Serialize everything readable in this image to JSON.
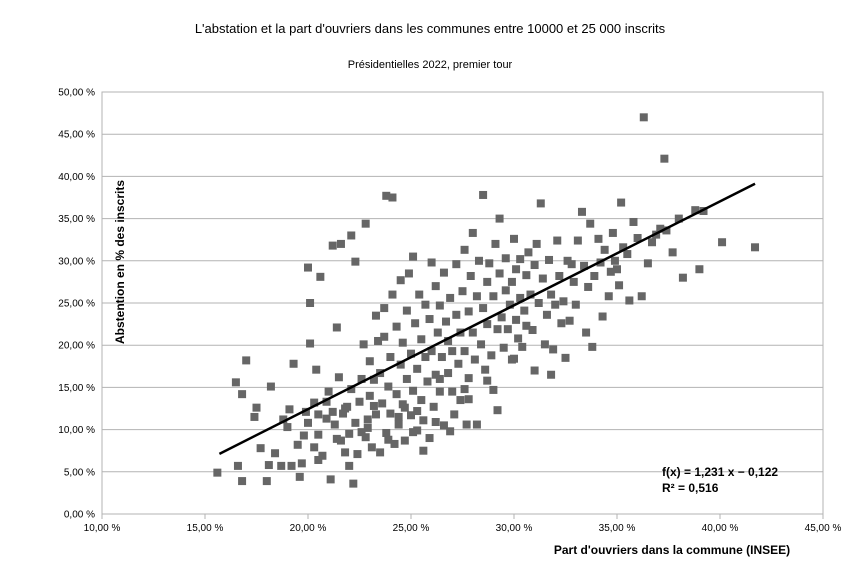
{
  "chart_data": {
    "type": "scatter",
    "title": "L'abstation et la part d'ouvriers dans les communes entre 10000 et 25 000 inscrits",
    "subtitle": "Présidentielles 2022, premier tour",
    "xlabel": "Part d'ouvriers dans la commune (INSEE)",
    "ylabel": "Abstention en % des inscrits",
    "xlim": [
      0.1,
      0.45
    ],
    "ylim": [
      0.0,
      0.5
    ],
    "x_ticks": [
      "10,00 %",
      "15,00 %",
      "20,00 %",
      "25,00 %",
      "30,00 %",
      "35,00 %",
      "40,00 %",
      "45,00 %"
    ],
    "y_ticks": [
      "0,00 %",
      "5,00 %",
      "10,00 %",
      "15,00 %",
      "20,00 %",
      "25,00 %",
      "30,00 %",
      "35,00 %",
      "40,00 %",
      "45,00 %",
      "50,00 %"
    ],
    "grid": true,
    "marker_color": "#666666",
    "trendline": {
      "slope": 1.231,
      "intercept": -0.122,
      "x_range": [
        0.157,
        0.417
      ],
      "equation": "f(x) = 1,231 x − 0,122",
      "r2": "R² = 0,516",
      "color": "#000000"
    },
    "series": [
      {
        "points": [
          [
            0.156,
            0.049
          ],
          [
            0.165,
            0.156
          ],
          [
            0.168,
            0.039
          ],
          [
            0.166,
            0.057
          ],
          [
            0.17,
            0.182
          ],
          [
            0.168,
            0.142
          ],
          [
            0.174,
            0.115
          ],
          [
            0.175,
            0.126
          ],
          [
            0.18,
            0.039
          ],
          [
            0.181,
            0.058
          ],
          [
            0.182,
            0.151
          ],
          [
            0.184,
            0.072
          ],
          [
            0.187,
            0.057
          ],
          [
            0.19,
            0.103
          ],
          [
            0.191,
            0.124
          ],
          [
            0.192,
            0.057
          ],
          [
            0.193,
            0.178
          ],
          [
            0.196,
            0.044
          ],
          [
            0.197,
            0.06
          ],
          [
            0.198,
            0.093
          ],
          [
            0.199,
            0.121
          ],
          [
            0.2,
            0.292
          ],
          [
            0.201,
            0.25
          ],
          [
            0.201,
            0.202
          ],
          [
            0.203,
            0.079
          ],
          [
            0.203,
            0.132
          ],
          [
            0.204,
            0.171
          ],
          [
            0.205,
            0.094
          ],
          [
            0.205,
            0.064
          ],
          [
            0.206,
            0.281
          ],
          [
            0.207,
            0.069
          ],
          [
            0.209,
            0.113
          ],
          [
            0.21,
            0.145
          ],
          [
            0.211,
            0.041
          ],
          [
            0.212,
            0.121
          ],
          [
            0.212,
            0.318
          ],
          [
            0.214,
            0.089
          ],
          [
            0.214,
            0.221
          ],
          [
            0.215,
            0.162
          ],
          [
            0.216,
            0.32
          ],
          [
            0.217,
            0.119
          ],
          [
            0.218,
            0.073
          ],
          [
            0.219,
            0.127
          ],
          [
            0.22,
            0.095
          ],
          [
            0.22,
            0.057
          ],
          [
            0.221,
            0.33
          ],
          [
            0.221,
            0.148
          ],
          [
            0.222,
            0.036
          ],
          [
            0.223,
            0.108
          ],
          [
            0.223,
            0.299
          ],
          [
            0.224,
            0.071
          ],
          [
            0.225,
            0.133
          ],
          [
            0.226,
            0.16
          ],
          [
            0.227,
            0.201
          ],
          [
            0.228,
            0.344
          ],
          [
            0.228,
            0.091
          ],
          [
            0.229,
            0.112
          ],
          [
            0.23,
            0.14
          ],
          [
            0.23,
            0.181
          ],
          [
            0.231,
            0.079
          ],
          [
            0.232,
            0.159
          ],
          [
            0.233,
            0.235
          ],
          [
            0.233,
            0.118
          ],
          [
            0.234,
            0.205
          ],
          [
            0.235,
            0.073
          ],
          [
            0.235,
            0.167
          ],
          [
            0.236,
            0.131
          ],
          [
            0.237,
            0.21
          ],
          [
            0.237,
            0.244
          ],
          [
            0.238,
            0.377
          ],
          [
            0.238,
            0.096
          ],
          [
            0.239,
            0.151
          ],
          [
            0.24,
            0.119
          ],
          [
            0.24,
            0.186
          ],
          [
            0.241,
            0.375
          ],
          [
            0.241,
            0.26
          ],
          [
            0.242,
            0.083
          ],
          [
            0.243,
            0.142
          ],
          [
            0.243,
            0.222
          ],
          [
            0.244,
            0.106
          ],
          [
            0.245,
            0.177
          ],
          [
            0.245,
            0.277
          ],
          [
            0.246,
            0.13
          ],
          [
            0.246,
            0.203
          ],
          [
            0.247,
            0.087
          ],
          [
            0.248,
            0.16
          ],
          [
            0.248,
            0.241
          ],
          [
            0.249,
            0.285
          ],
          [
            0.25,
            0.117
          ],
          [
            0.25,
            0.19
          ],
          [
            0.251,
            0.305
          ],
          [
            0.251,
            0.146
          ],
          [
            0.252,
            0.226
          ],
          [
            0.253,
            0.099
          ],
          [
            0.253,
            0.172
          ],
          [
            0.254,
            0.26
          ],
          [
            0.255,
            0.135
          ],
          [
            0.255,
            0.207
          ],
          [
            0.256,
            0.111
          ],
          [
            0.257,
            0.186
          ],
          [
            0.257,
            0.248
          ],
          [
            0.258,
            0.157
          ],
          [
            0.259,
            0.231
          ],
          [
            0.259,
            0.09
          ],
          [
            0.26,
            0.298
          ],
          [
            0.26,
            0.193
          ],
          [
            0.261,
            0.127
          ],
          [
            0.262,
            0.27
          ],
          [
            0.262,
            0.165
          ],
          [
            0.263,
            0.215
          ],
          [
            0.264,
            0.145
          ],
          [
            0.264,
            0.247
          ],
          [
            0.265,
            0.186
          ],
          [
            0.266,
            0.105
          ],
          [
            0.266,
            0.286
          ],
          [
            0.267,
            0.228
          ],
          [
            0.268,
            0.167
          ],
          [
            0.268,
            0.205
          ],
          [
            0.269,
            0.256
          ],
          [
            0.27,
            0.145
          ],
          [
            0.27,
            0.193
          ],
          [
            0.271,
            0.118
          ],
          [
            0.272,
            0.236
          ],
          [
            0.272,
            0.296
          ],
          [
            0.273,
            0.178
          ],
          [
            0.274,
            0.215
          ],
          [
            0.274,
            0.135
          ],
          [
            0.275,
            0.264
          ],
          [
            0.276,
            0.313
          ],
          [
            0.276,
            0.193
          ],
          [
            0.277,
            0.106
          ],
          [
            0.278,
            0.24
          ],
          [
            0.278,
            0.161
          ],
          [
            0.279,
            0.282
          ],
          [
            0.28,
            0.215
          ],
          [
            0.28,
            0.333
          ],
          [
            0.281,
            0.183
          ],
          [
            0.282,
            0.258
          ],
          [
            0.282,
            0.106
          ],
          [
            0.283,
            0.3
          ],
          [
            0.284,
            0.201
          ],
          [
            0.285,
            0.244
          ],
          [
            0.285,
            0.378
          ],
          [
            0.286,
            0.171
          ],
          [
            0.287,
            0.275
          ],
          [
            0.287,
            0.225
          ],
          [
            0.288,
            0.297
          ],
          [
            0.289,
            0.188
          ],
          [
            0.29,
            0.258
          ],
          [
            0.29,
            0.147
          ],
          [
            0.291,
            0.32
          ],
          [
            0.292,
            0.219
          ],
          [
            0.292,
            0.123
          ],
          [
            0.293,
            0.285
          ],
          [
            0.293,
            0.35
          ],
          [
            0.294,
            0.233
          ],
          [
            0.295,
            0.197
          ],
          [
            0.296,
            0.265
          ],
          [
            0.296,
            0.303
          ],
          [
            0.297,
            0.219
          ],
          [
            0.298,
            0.248
          ],
          [
            0.299,
            0.275
          ],
          [
            0.299,
            0.183
          ],
          [
            0.3,
            0.326
          ],
          [
            0.301,
            0.23
          ],
          [
            0.301,
            0.29
          ],
          [
            0.302,
            0.208
          ],
          [
            0.303,
            0.256
          ],
          [
            0.303,
            0.302
          ],
          [
            0.304,
            0.198
          ],
          [
            0.305,
            0.241
          ],
          [
            0.306,
            0.283
          ],
          [
            0.306,
            0.223
          ],
          [
            0.307,
            0.31
          ],
          [
            0.308,
            0.26
          ],
          [
            0.309,
            0.218
          ],
          [
            0.31,
            0.295
          ],
          [
            0.31,
            0.17
          ],
          [
            0.311,
            0.32
          ],
          [
            0.312,
            0.25
          ],
          [
            0.313,
            0.368
          ],
          [
            0.314,
            0.279
          ],
          [
            0.315,
            0.201
          ],
          [
            0.316,
            0.236
          ],
          [
            0.317,
            0.301
          ],
          [
            0.318,
            0.26
          ],
          [
            0.319,
            0.195
          ],
          [
            0.32,
            0.248
          ],
          [
            0.321,
            0.324
          ],
          [
            0.322,
            0.282
          ],
          [
            0.323,
            0.226
          ],
          [
            0.324,
            0.252
          ],
          [
            0.326,
            0.3
          ],
          [
            0.327,
            0.229
          ],
          [
            0.328,
            0.296
          ],
          [
            0.329,
            0.275
          ],
          [
            0.33,
            0.248
          ],
          [
            0.331,
            0.324
          ],
          [
            0.333,
            0.358
          ],
          [
            0.334,
            0.294
          ],
          [
            0.335,
            0.215
          ],
          [
            0.336,
            0.269
          ],
          [
            0.337,
            0.344
          ],
          [
            0.338,
            0.198
          ],
          [
            0.339,
            0.282
          ],
          [
            0.341,
            0.326
          ],
          [
            0.342,
            0.298
          ],
          [
            0.343,
            0.234
          ],
          [
            0.344,
            0.313
          ],
          [
            0.346,
            0.258
          ],
          [
            0.347,
            0.287
          ],
          [
            0.348,
            0.333
          ],
          [
            0.349,
            0.3
          ],
          [
            0.35,
            0.29
          ],
          [
            0.351,
            0.271
          ],
          [
            0.352,
            0.369
          ],
          [
            0.353,
            0.316
          ],
          [
            0.355,
            0.308
          ],
          [
            0.356,
            0.253
          ],
          [
            0.358,
            0.346
          ],
          [
            0.36,
            0.327
          ],
          [
            0.362,
            0.258
          ],
          [
            0.363,
            0.47
          ],
          [
            0.365,
            0.297
          ],
          [
            0.367,
            0.322
          ],
          [
            0.369,
            0.331
          ],
          [
            0.371,
            0.338
          ],
          [
            0.373,
            0.421
          ],
          [
            0.374,
            0.336
          ],
          [
            0.377,
            0.31
          ],
          [
            0.38,
            0.35
          ],
          [
            0.382,
            0.28
          ],
          [
            0.388,
            0.36
          ],
          [
            0.39,
            0.29
          ],
          [
            0.392,
            0.359
          ],
          [
            0.401,
            0.322
          ],
          [
            0.417,
            0.316
          ],
          [
            0.269,
            0.098
          ],
          [
            0.256,
            0.075
          ],
          [
            0.262,
            0.109
          ],
          [
            0.247,
            0.126
          ],
          [
            0.229,
            0.102
          ],
          [
            0.216,
            0.087
          ],
          [
            0.213,
            0.106
          ],
          [
            0.209,
            0.133
          ],
          [
            0.195,
            0.082
          ],
          [
            0.188,
            0.112
          ],
          [
            0.177,
            0.078
          ],
          [
            0.2,
            0.108
          ],
          [
            0.226,
            0.097
          ],
          [
            0.239,
            0.088
          ],
          [
            0.251,
            0.097
          ],
          [
            0.278,
            0.136
          ],
          [
            0.287,
            0.158
          ],
          [
            0.3,
            0.184
          ],
          [
            0.318,
            0.165
          ],
          [
            0.325,
            0.185
          ],
          [
            0.276,
            0.148
          ],
          [
            0.264,
            0.16
          ],
          [
            0.253,
            0.122
          ],
          [
            0.244,
            0.115
          ],
          [
            0.232,
            0.128
          ],
          [
            0.218,
            0.125
          ],
          [
            0.205,
            0.118
          ]
        ]
      }
    ]
  }
}
